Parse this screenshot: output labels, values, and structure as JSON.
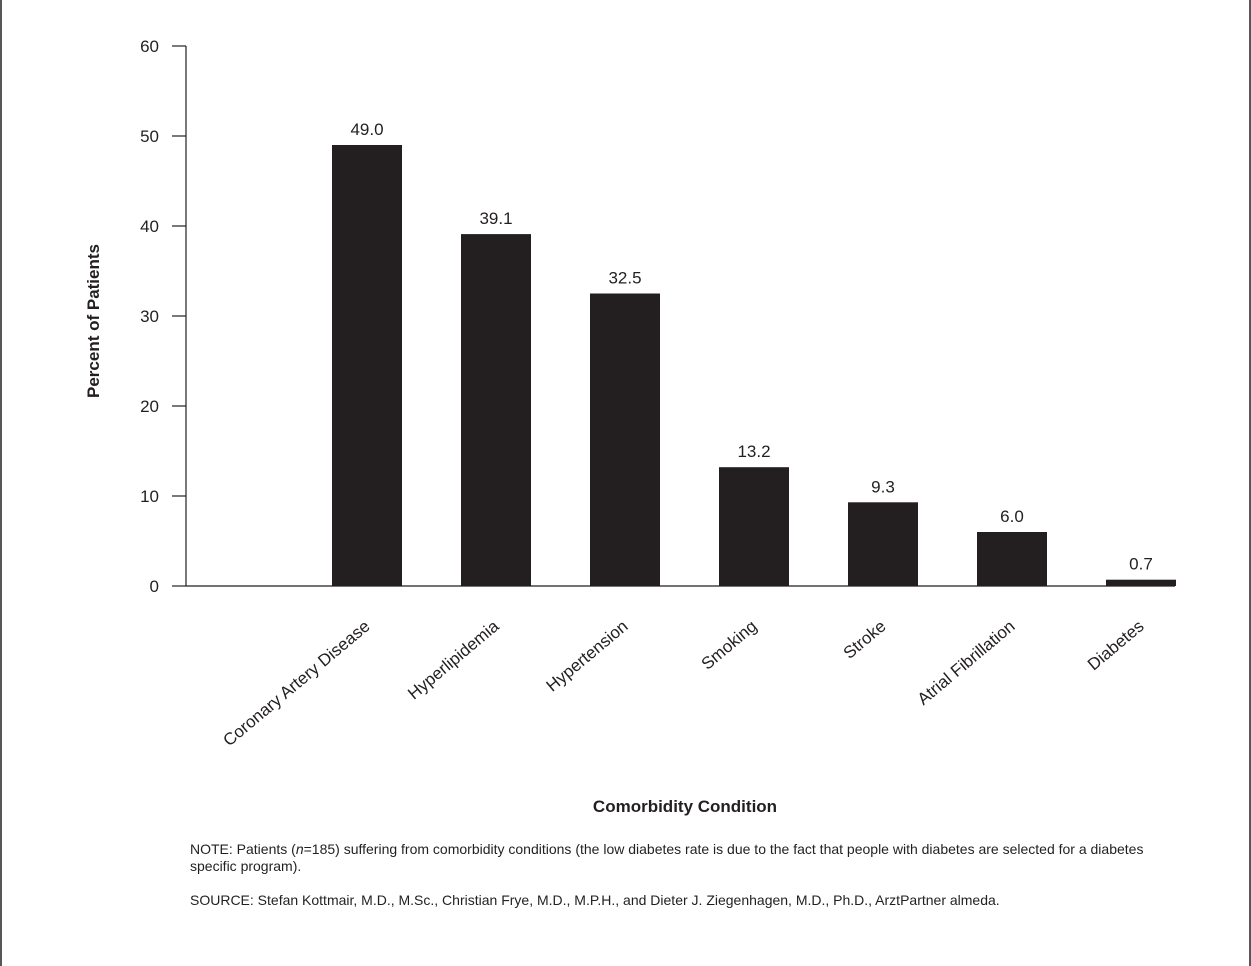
{
  "chart_data": {
    "type": "bar",
    "title": "",
    "xlabel": "Comorbidity Condition",
    "ylabel": "Percent of Patients",
    "ylim": [
      0,
      60
    ],
    "yticks": [
      0,
      10,
      20,
      30,
      40,
      50,
      60
    ],
    "categories": [
      "Coronary Artery Disease",
      "Hyperlipidemia",
      "Hypertension",
      "Smoking",
      "Stroke",
      "Atrial Fibrillation",
      "Diabetes"
    ],
    "values": [
      49.0,
      39.1,
      32.5,
      13.2,
      9.3,
      6.0,
      0.7
    ],
    "data_labels": [
      "49.0",
      "39.1",
      "32.5",
      "13.2",
      "9.3",
      "6.0",
      "0.7"
    ],
    "grid": false,
    "bar_color": "#231f20"
  },
  "note": {
    "prefix": "NOTE: Patients (",
    "n_symbol": "n",
    "suffix": "=185) suffering from comorbidity conditions (the low diabetes rate is due to the fact that people with diabetes are selected for a diabetes specific program)."
  },
  "source": {
    "text": "SOURCE: Stefan Kottmair, M.D., M.Sc., Christian Frye, M.D., M.P.H., and Dieter J. Ziegenhagen, M.D., Ph.D., ArztPartner almeda."
  }
}
